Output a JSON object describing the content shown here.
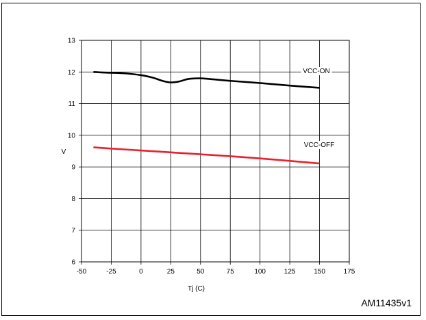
{
  "chart_data": {
    "type": "line",
    "title": "",
    "xlabel": "Tj (C)",
    "ylabel": "V",
    "xlim": [
      -50,
      175
    ],
    "ylim": [
      6,
      13
    ],
    "x_ticks": [
      "-50",
      "-25",
      "0",
      "25",
      "50",
      "75",
      "100",
      "125",
      "150",
      "175"
    ],
    "y_ticks": [
      "6",
      "7",
      "8",
      "9",
      "10",
      "11",
      "12",
      "13"
    ],
    "grid": true,
    "series": [
      {
        "name": "VCC-ON",
        "color": "#000000",
        "x": [
          -40,
          -30,
          -15,
          0,
          10,
          18,
          25,
          32,
          40,
          50,
          60,
          75,
          100,
          125,
          150
        ],
        "y": [
          12.0,
          11.98,
          11.96,
          11.9,
          11.82,
          11.72,
          11.67,
          11.7,
          11.78,
          11.8,
          11.77,
          11.72,
          11.65,
          11.57,
          11.5
        ]
      },
      {
        "name": "VCC-OFF",
        "color": "#e8212b",
        "x": [
          -40,
          -25,
          0,
          25,
          50,
          75,
          100,
          125,
          150
        ],
        "y": [
          9.62,
          9.58,
          9.52,
          9.46,
          9.4,
          9.34,
          9.27,
          9.19,
          9.11
        ]
      }
    ]
  },
  "figure_code": "AM11435v1"
}
